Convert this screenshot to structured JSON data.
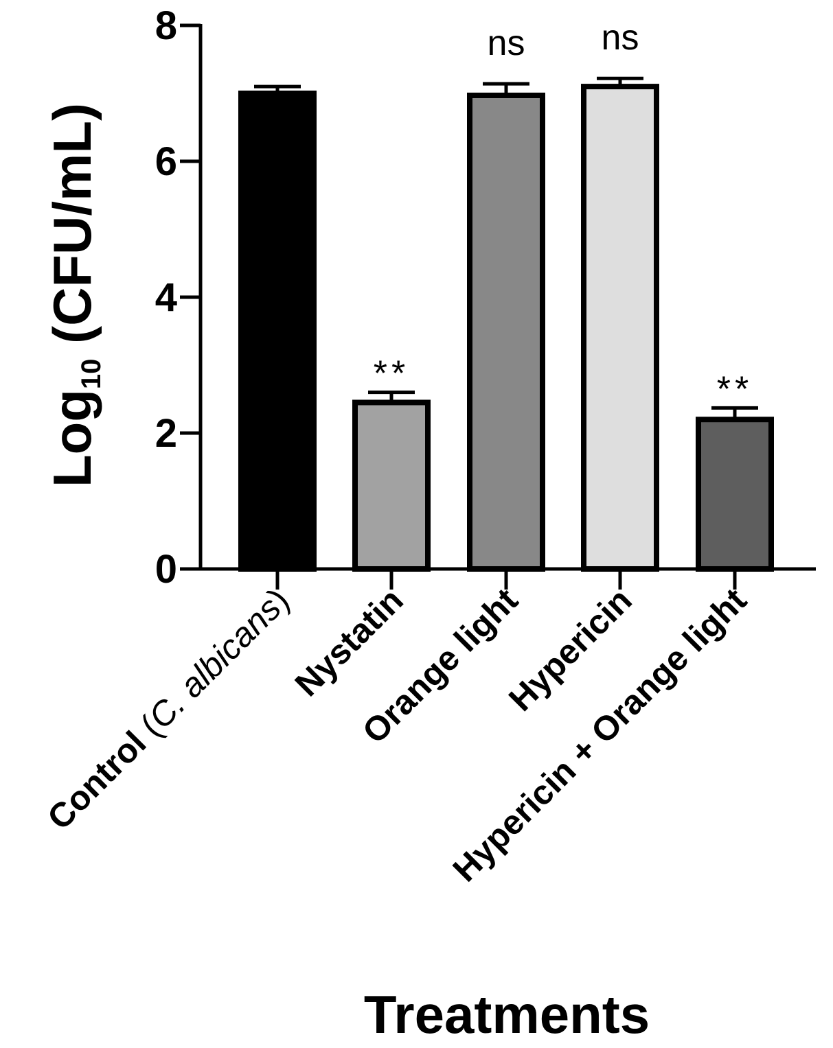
{
  "chart_data": {
    "type": "bar",
    "xlabel": "Treatments",
    "ylabel": "Log10 (CFU/mL)",
    "ylabel_parts": {
      "base": "Log",
      "sub": "10",
      "rest": " (CFU/mL)"
    },
    "ylim": [
      0,
      8
    ],
    "yticks": [
      "0",
      "2",
      "4",
      "6",
      "8"
    ],
    "grid": false,
    "bars": [
      {
        "label": "Control",
        "label_italic_suffix": {
          "open": " (",
          "italic": "C. albicans",
          "close": ")"
        },
        "value": 7.0,
        "error": 0.1,
        "significance": "",
        "color": "#000000"
      },
      {
        "label": "Nystatin",
        "value": 2.45,
        "error": 0.15,
        "significance": "**",
        "color": "#a2a2a2"
      },
      {
        "label": "Orange light",
        "value": 6.97,
        "error": 0.17,
        "significance": "ns",
        "color": "#888888"
      },
      {
        "label": "Hypericin",
        "value": 7.1,
        "error": 0.12,
        "significance": "ns",
        "color": "#dedede"
      },
      {
        "label": "Hypericin + Orange light",
        "value": 2.2,
        "error": 0.17,
        "significance": "**",
        "color": "#5e5e5e"
      }
    ]
  }
}
